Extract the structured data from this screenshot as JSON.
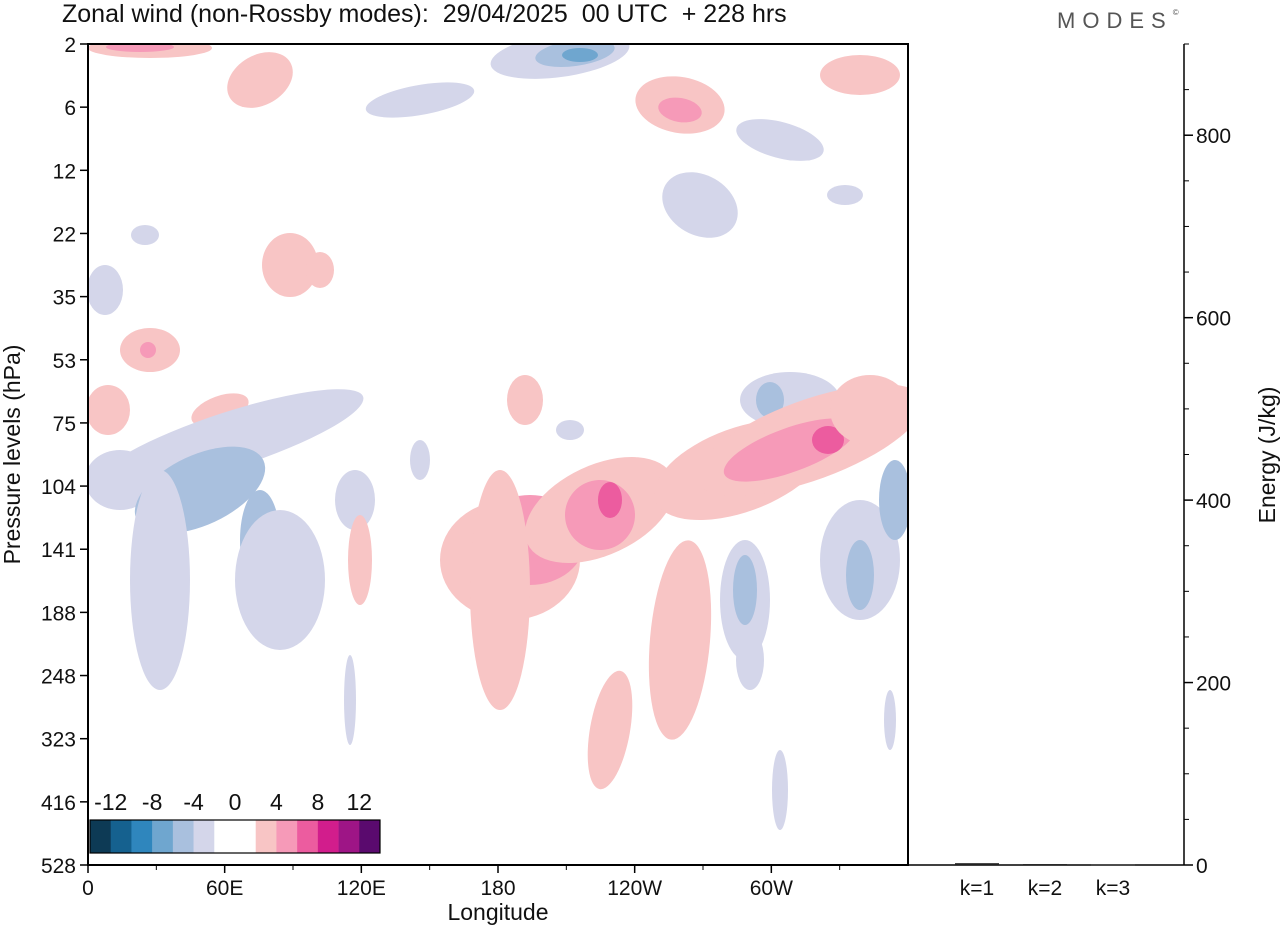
{
  "title": "Zonal wind (non-Rossby modes):  29/04/2025  00 UTC  + 228 hrs",
  "logo": "MODES",
  "chart_data": [
    {
      "type": "heatmap",
      "title": "Zonal wind (non-Rossby modes):  29/04/2025  00 UTC  + 228 hrs",
      "xlabel": "Longitude",
      "ylabel": "Pressure levels (hPa)",
      "x_ticks": [
        "0",
        "60E",
        "120E",
        "180",
        "120W",
        "60W"
      ],
      "x_tick_degrees": [
        0,
        60,
        120,
        180,
        240,
        300
      ],
      "xlim": [
        0,
        360
      ],
      "y_ticks": [
        "2",
        "6",
        "12",
        "22",
        "35",
        "53",
        "75",
        "104",
        "141",
        "188",
        "248",
        "323",
        "416",
        "528"
      ],
      "y_scale": "categorical pressure levels, top to bottom",
      "colorbar": {
        "labels": [
          "-12",
          "-8",
          "-4",
          "0",
          "4",
          "8",
          "12"
        ],
        "colors": [
          "#0d3a55",
          "#15618f",
          "#2f86bd",
          "#6fa6cf",
          "#a9c0de",
          "#d4d6ea",
          "#ffffff",
          "#ffffff",
          "#f8c5c5",
          "#f69ab8",
          "#ec5c9f",
          "#d21d8c",
          "#9e1586",
          "#5a0a6e"
        ],
        "placement": "bottom-left"
      },
      "features": [
        {
          "lon": 30,
          "level": "2",
          "sign": "positive",
          "peak": 8
        },
        {
          "lon": 210,
          "level": "2",
          "sign": "negative",
          "peak": -8
        },
        {
          "lon": 256,
          "level": "6",
          "sign": "positive",
          "peak": 8
        },
        {
          "lon": 25,
          "level": "53",
          "sign": "positive",
          "peak": 6
        },
        {
          "lon": 45,
          "level": "104",
          "sign": "negative",
          "peak": -6
        },
        {
          "lon": 200,
          "level": "141",
          "sign": "positive",
          "peak": 6
        },
        {
          "lon": 226,
          "level": "104",
          "sign": "positive",
          "peak": 7
        },
        {
          "lon": 324,
          "level": "75",
          "sign": "positive",
          "peak": 9
        },
        {
          "lon": 290,
          "level": "188",
          "sign": "negative",
          "peak": -6
        },
        {
          "lon": 335,
          "level": "141",
          "sign": "negative",
          "peak": -6
        }
      ]
    },
    {
      "type": "bar",
      "categories": [
        "k=1",
        "k=2",
        "k=3"
      ],
      "values": [
        2,
        1,
        0.5
      ],
      "ylabel": "Energy (J/kg)",
      "ylim": [
        0,
        900
      ],
      "y_ticks": [
        0,
        200,
        400,
        600,
        800
      ]
    }
  ]
}
